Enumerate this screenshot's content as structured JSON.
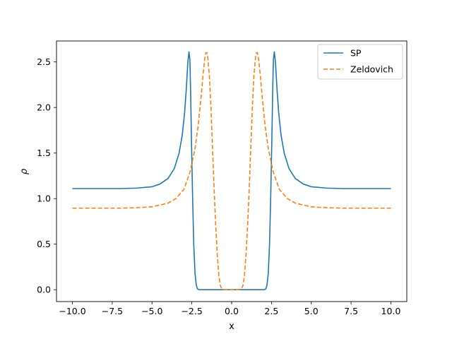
{
  "chart_data": {
    "type": "line",
    "title": "",
    "xlabel": "x",
    "ylabel": "ρ",
    "xlim": [
      -11.0,
      11.0
    ],
    "ylim": [
      -0.13,
      2.73
    ],
    "xticks": [
      -10.0,
      -7.5,
      -5.0,
      -2.5,
      0.0,
      2.5,
      5.0,
      7.5,
      10.0
    ],
    "xtick_labels": [
      "−10.0",
      "−7.5",
      "−5.0",
      "−2.5",
      "0.0",
      "2.5",
      "5.0",
      "7.5",
      "10.0"
    ],
    "yticks": [
      0.0,
      0.5,
      1.0,
      1.5,
      2.0,
      2.5
    ],
    "ytick_labels": [
      "0.0",
      "0.5",
      "1.0",
      "1.5",
      "2.0",
      "2.5"
    ],
    "grid": false,
    "legend_position": "top-right",
    "series": [
      {
        "name": "SP",
        "color": "#1f77b4",
        "dash": "solid",
        "x": [
          -10,
          -8,
          -7,
          -6,
          -5,
          -4.5,
          -4,
          -3.6,
          -3.3,
          -3.1,
          -2.95,
          -2.85,
          -2.75,
          -2.68,
          -2.62,
          -2.58,
          -2.52,
          -2.45,
          -2.38,
          -2.3,
          -2.22,
          -2.15,
          -2.08,
          -2.0,
          -1.9,
          -1.6,
          -1.0,
          0.0,
          1.0,
          1.6,
          1.9,
          2.0,
          2.08,
          2.15,
          2.22,
          2.3,
          2.38,
          2.45,
          2.52,
          2.58,
          2.62,
          2.68,
          2.75,
          2.85,
          2.95,
          3.1,
          3.3,
          3.6,
          4.0,
          4.5,
          5.0,
          6.0,
          7.0,
          8.0,
          10.0
        ],
        "y": [
          1.11,
          1.11,
          1.11,
          1.115,
          1.13,
          1.16,
          1.22,
          1.33,
          1.5,
          1.7,
          1.95,
          2.2,
          2.5,
          2.61,
          2.52,
          2.2,
          1.6,
          1.0,
          0.5,
          0.18,
          0.05,
          0.01,
          0.002,
          0.0,
          0.0,
          0.0,
          0.0,
          0.0,
          0.0,
          0.0,
          0.0,
          0.0,
          0.002,
          0.01,
          0.05,
          0.18,
          0.5,
          1.0,
          1.6,
          2.2,
          2.52,
          2.61,
          2.5,
          2.2,
          1.95,
          1.7,
          1.5,
          1.33,
          1.22,
          1.16,
          1.13,
          1.115,
          1.11,
          1.11,
          1.11
        ]
      },
      {
        "name": "Zeldovich",
        "color": "#ff7f0e",
        "dash": "6,3",
        "x": [
          -10,
          -8,
          -7,
          -6,
          -5,
          -4,
          -3.5,
          -3.0,
          -2.6,
          -2.3,
          -2.1,
          -1.9,
          -1.8,
          -1.7,
          -1.62,
          -1.55,
          -1.5,
          -1.4,
          -1.3,
          -1.2,
          -1.1,
          -1.0,
          -0.9,
          -0.8,
          -0.7,
          -0.6,
          -0.3,
          0.0,
          0.3,
          0.6,
          0.7,
          0.8,
          0.9,
          1.0,
          1.1,
          1.2,
          1.3,
          1.4,
          1.5,
          1.55,
          1.62,
          1.7,
          1.8,
          1.9,
          2.1,
          2.3,
          2.6,
          3.0,
          3.5,
          4.0,
          5.0,
          6.0,
          7.0,
          8.0,
          10.0
        ],
        "y": [
          0.895,
          0.895,
          0.895,
          0.9,
          0.91,
          0.95,
          1.0,
          1.1,
          1.3,
          1.55,
          1.8,
          2.15,
          2.35,
          2.52,
          2.6,
          2.6,
          2.55,
          2.35,
          2.0,
          1.55,
          1.1,
          0.7,
          0.38,
          0.15,
          0.04,
          0.005,
          0.0,
          0.0,
          0.0,
          0.005,
          0.04,
          0.15,
          0.38,
          0.7,
          1.1,
          1.55,
          2.0,
          2.35,
          2.55,
          2.6,
          2.6,
          2.52,
          2.35,
          2.15,
          1.8,
          1.55,
          1.3,
          1.1,
          1.0,
          0.95,
          0.91,
          0.9,
          0.895,
          0.895,
          0.895
        ]
      }
    ]
  }
}
